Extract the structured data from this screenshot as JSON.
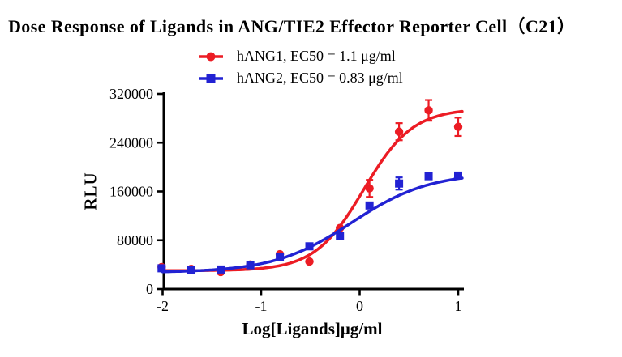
{
  "title": "Dose Response of Ligands in ANG/TIE2 Effector Reporter Cell（C21）",
  "y_axis_title": "RLU",
  "x_axis_title": "Log[Ligands]μg/ml",
  "colors": {
    "hang1_red": "#EC1C24",
    "hang2_blue": "#2222D3",
    "axis": "#000000"
  },
  "legend": [
    {
      "label": "hANG1, EC50 = 1.1 μg/ml",
      "marker": "circle"
    },
    {
      "label": "hANG2, EC50 = 0.83 μg/ml",
      "marker": "square"
    }
  ],
  "chart_data": {
    "type": "scatter",
    "title": "Dose Response of Ligands in ANG/TIE2 Effector Reporter Cell（C21）",
    "xlabel": "Log[Ligands]μg/ml",
    "ylabel": "RLU",
    "xlim": [
      -2,
      1
    ],
    "ylim": [
      0,
      320000
    ],
    "x_ticks": [
      -2,
      -1,
      0,
      1
    ],
    "y_ticks": [
      0,
      80000,
      160000,
      240000,
      320000
    ],
    "grid": false,
    "legend_position": "top-center",
    "x": [
      -2.01,
      -1.71,
      -1.41,
      -1.11,
      -0.81,
      -0.51,
      -0.2,
      0.1,
      0.4,
      0.7,
      1.0
    ],
    "series": [
      {
        "name": "hANG1, EC50 = 1.1 μg/ml",
        "marker": "circle",
        "color": "#EC1C24",
        "values": [
          36000,
          33000,
          28000,
          40000,
          57000,
          45000,
          100000,
          165000,
          258000,
          293000,
          266000
        ],
        "errors": [
          0,
          0,
          0,
          0,
          0,
          0,
          0,
          14000,
          14000,
          17000,
          15000
        ],
        "fit": {
          "model": "4PL",
          "bottom": 30000,
          "top": 296000,
          "logEC50": 0.041,
          "hill": 1.75,
          "ec50": "1.1 μg/ml"
        }
      },
      {
        "name": "hANG2, EC50 = 0.83 μg/ml",
        "marker": "square",
        "color": "#2222D3",
        "values": [
          34000,
          31000,
          32000,
          39000,
          53000,
          70000,
          87000,
          137000,
          173000,
          185000,
          186000
        ],
        "errors": [
          0,
          0,
          0,
          0,
          0,
          0,
          0,
          0,
          10000,
          0,
          0
        ],
        "fit": {
          "model": "4PL",
          "bottom": 27000,
          "top": 191000,
          "logEC50": -0.081,
          "hill": 1.1,
          "ec50": "0.83 μg/ml"
        }
      }
    ]
  }
}
